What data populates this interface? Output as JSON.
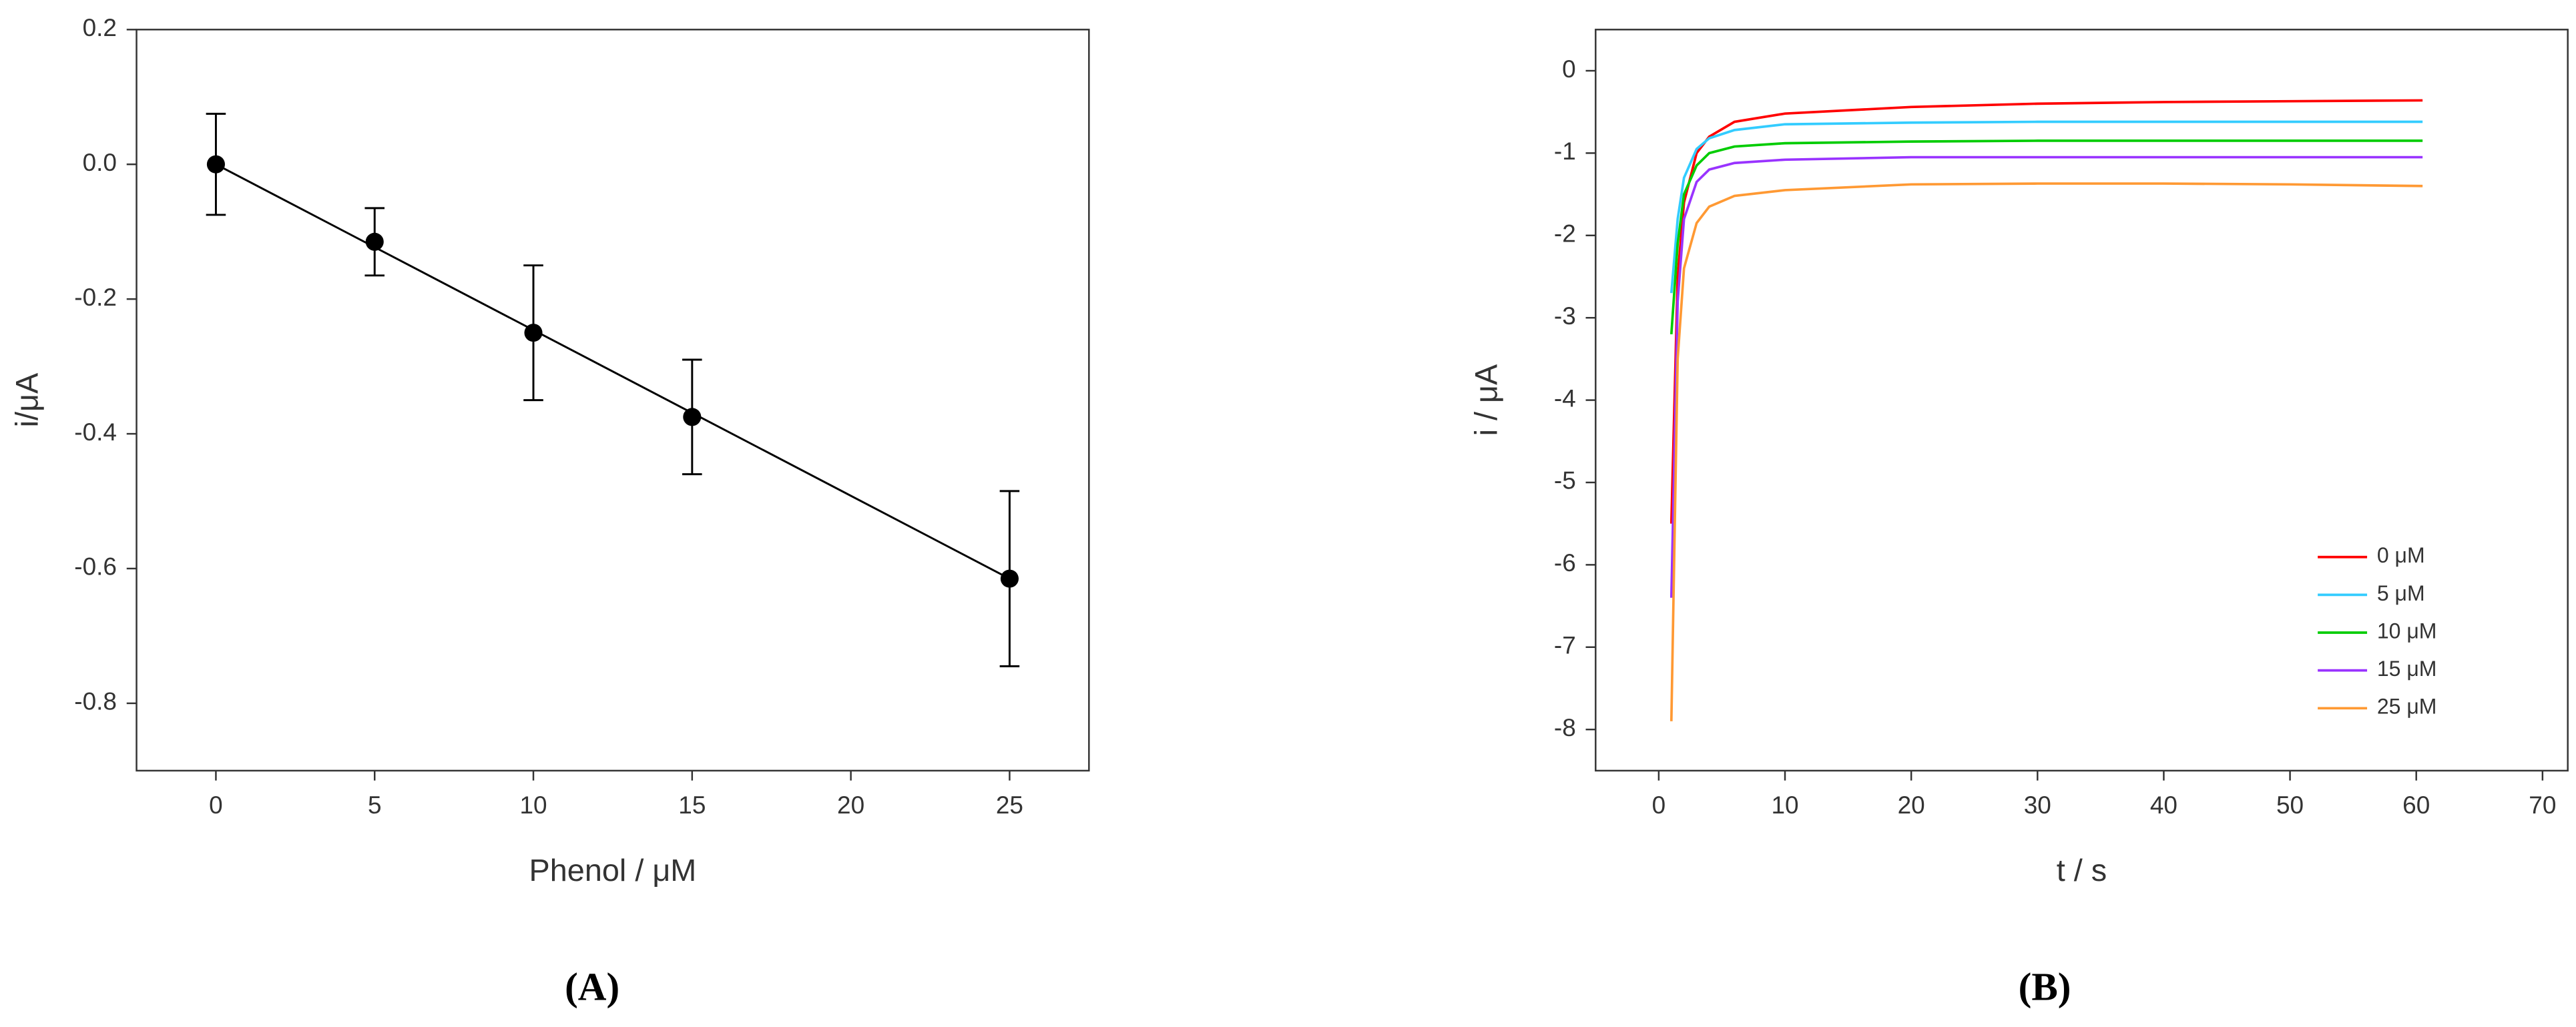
{
  "chart_data": [
    {
      "type": "scatter",
      "caption": "(A)",
      "x_label": "Phenol / μM",
      "y_label": "i/μA",
      "xlim": [
        -2.5,
        27.5
      ],
      "ylim": [
        -0.9,
        0.2
      ],
      "xticks": [
        0,
        5,
        10,
        15,
        20,
        25
      ],
      "yticks": [
        0.2,
        {
          "value": 0,
          "label": "0.0"
        },
        -0.2,
        -0.4,
        -0.6,
        -0.8
      ],
      "x": [
        0,
        5,
        10,
        15,
        25
      ],
      "series": [
        {
          "color": "#000000",
          "values": [
            0,
            -0.115,
            -0.25,
            -0.375,
            -0.615
          ],
          "errors": [
            0.075,
            0.05,
            0.1,
            0.085,
            0.13
          ]
        }
      ],
      "fit": {
        "x": [
          0,
          25
        ],
        "values": [
          0,
          -0.615
        ],
        "color": "#000000"
      }
    },
    {
      "type": "line",
      "caption": "(B)",
      "x_label": "t / s",
      "y_label": "i / μA",
      "xlim": [
        -5,
        72
      ],
      "ylim": [
        -8.5,
        0.5
      ],
      "xticks": [
        0,
        10,
        20,
        30,
        40,
        50,
        60,
        70
      ],
      "yticks": [
        0,
        -1,
        -2,
        -3,
        -4,
        -5,
        -6,
        -7,
        -8
      ],
      "legend": "lower right",
      "x": [
        1,
        1.5,
        2,
        3,
        4,
        6,
        10,
        20,
        30,
        40,
        50,
        60.5
      ],
      "series": [
        {
          "name": "0 μM",
          "color": "#ff0000",
          "values": [
            -5.5,
            -2.5,
            -1.6,
            -1.0,
            -0.8,
            -0.62,
            -0.52,
            -0.44,
            -0.4,
            -0.38,
            -0.37,
            -0.36
          ]
        },
        {
          "name": "5 μM",
          "color": "#33ccff",
          "values": [
            -2.7,
            -1.8,
            -1.3,
            -0.95,
            -0.82,
            -0.72,
            -0.65,
            -0.63,
            -0.62,
            -0.62,
            -0.62,
            -0.62
          ]
        },
        {
          "name": "10 μM",
          "color": "#00cc00",
          "values": [
            -3.2,
            -2.1,
            -1.5,
            -1.15,
            -1.0,
            -0.92,
            -0.88,
            -0.86,
            -0.85,
            -0.85,
            -0.85,
            -0.85
          ]
        },
        {
          "name": "15 μM",
          "color": "#9933ff",
          "values": [
            -6.4,
            -2.8,
            -1.8,
            -1.35,
            -1.2,
            -1.12,
            -1.08,
            -1.05,
            -1.05,
            -1.05,
            -1.05,
            -1.05
          ]
        },
        {
          "name": "25 μM",
          "color": "#ff9933",
          "values": [
            -7.9,
            -3.5,
            -2.4,
            -1.85,
            -1.65,
            -1.52,
            -1.45,
            -1.38,
            -1.37,
            -1.37,
            -1.38,
            -1.4
          ]
        }
      ]
    }
  ]
}
